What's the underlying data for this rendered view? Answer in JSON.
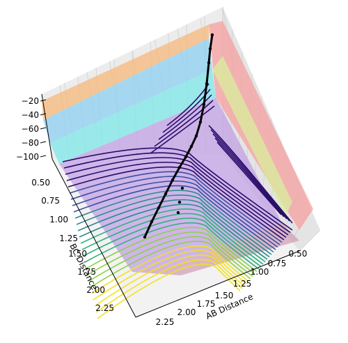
{
  "chart_data": {
    "type": "surface3d",
    "description_of_marks": "3D potential energy surface with colored bands, contour lines on floor, and a black reaction trajectory",
    "z_axis": {
      "label": "",
      "ticks": [
        "−20",
        "−40",
        "−60",
        "−80",
        "−100"
      ],
      "range": [
        -100,
        -20
      ]
    },
    "bc_axis": {
      "label": "BC Distance",
      "ticks": [
        "0.50",
        "0.75",
        "1.00",
        "1.25",
        "1.50",
        "1.75",
        "2.00",
        "2.25"
      ],
      "range": [
        0.5,
        2.25
      ]
    },
    "ab_axis": {
      "label": "AB Distance",
      "ticks": [
        "2.25",
        "2.00",
        "1.75",
        "1.50",
        "1.25",
        "1.00",
        "0.75",
        "0.50"
      ],
      "range": [
        0.5,
        2.25
      ]
    },
    "surface_bands_colors": [
      "#f7a75d",
      "#8fd3f5",
      "#d2ee9d",
      "#f7a4a4",
      "#7ef0ee",
      "#c8a0ee",
      "#ffffff"
    ],
    "contour_colormap": [
      "#2a0c6a",
      "#3b4fa0",
      "#2b8a8e",
      "#2cb17c",
      "#8dd04a",
      "#f2e11f"
    ],
    "trajectory": {
      "color": "#000000",
      "points_ab_bc": [
        [
          0.5,
          2.05
        ],
        [
          0.6,
          1.85
        ],
        [
          0.7,
          1.65
        ],
        [
          0.8,
          1.45
        ],
        [
          0.9,
          1.25
        ],
        [
          1.0,
          1.05
        ],
        [
          1.05,
          0.95
        ],
        [
          1.0,
          0.85
        ],
        [
          0.9,
          0.78
        ],
        [
          0.75,
          0.76
        ],
        [
          0.65,
          0.78
        ],
        [
          0.55,
          0.82
        ]
      ]
    },
    "grid": true
  }
}
